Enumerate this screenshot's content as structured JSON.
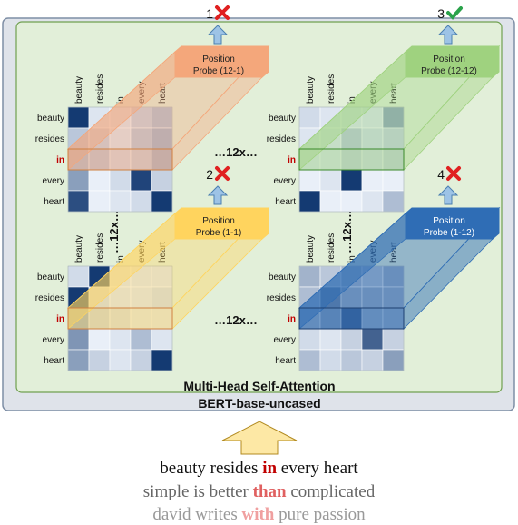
{
  "model_label": "BERT-base-uncased",
  "mhsa_label": "Multi-Head Self-Attention",
  "repeat_label": "…12x…",
  "tokens": [
    "beauty",
    "resides",
    "in",
    "every",
    "heart"
  ],
  "highlight_token_index": 2,
  "probes": [
    {
      "id": "tl",
      "number": "1",
      "result": "fail",
      "label_line1": "Position",
      "label_line2": "Probe (12-1)",
      "color": "#f4a77b"
    },
    {
      "id": "tr",
      "number": "3",
      "result": "pass",
      "label_line1": "Position",
      "label_line2": "Probe (12-12)",
      "color": "#9fd27f"
    },
    {
      "id": "bl",
      "number": "2",
      "result": "fail",
      "label_line1": "Position",
      "label_line2": "Probe (1-1)",
      "color": "#ffd45e"
    },
    {
      "id": "br",
      "number": "4",
      "result": "fail",
      "label_line1": "Position",
      "label_line2": "Probe (1-12)",
      "color": "#2f6db5"
    }
  ],
  "heatmaps": {
    "tl": [
      [
        0.95,
        0.1,
        0.1,
        0.2,
        0.3
      ],
      [
        0.25,
        0.2,
        0.1,
        0.25,
        0.35
      ],
      [
        0.3,
        0.25,
        0.15,
        0.2,
        0.35
      ],
      [
        0.45,
        0.05,
        0.15,
        0.9,
        0.2
      ],
      [
        0.85,
        0.05,
        0.1,
        0.15,
        0.95
      ]
    ],
    "tr": [
      [
        0.15,
        0.1,
        0.1,
        0.1,
        0.45
      ],
      [
        0.1,
        0.1,
        0.25,
        0.15,
        0.2
      ],
      [
        0.1,
        0.1,
        0.2,
        0.15,
        0.2
      ],
      [
        0.05,
        0.1,
        0.95,
        0.05,
        0.05
      ],
      [
        0.95,
        0.05,
        0.05,
        0.1,
        0.3
      ]
    ],
    "bl": [
      [
        0.15,
        0.95,
        0.1,
        0.1,
        0.1
      ],
      [
        0.95,
        0.15,
        0.1,
        0.1,
        0.15
      ],
      [
        0.4,
        0.2,
        0.15,
        0.1,
        0.1
      ],
      [
        0.5,
        0.05,
        0.1,
        0.3,
        0.1
      ],
      [
        0.45,
        0.2,
        0.1,
        0.2,
        0.95
      ]
    ],
    "br": [
      [
        0.35,
        0.25,
        0.35,
        0.3,
        0.4
      ],
      [
        0.3,
        0.6,
        0.4,
        0.4,
        0.4
      ],
      [
        0.35,
        0.45,
        0.8,
        0.35,
        0.35
      ],
      [
        0.15,
        0.1,
        0.2,
        0.75,
        0.2
      ],
      [
        0.3,
        0.15,
        0.25,
        0.2,
        0.45
      ]
    ]
  },
  "sentences": [
    {
      "before": "beauty resides ",
      "highlight": "in",
      "after": " every heart",
      "text_color": "#111111",
      "highlight_color": "#c00000"
    },
    {
      "before": "simple is better ",
      "highlight": "than",
      "after": " complicated",
      "text_color": "#666666",
      "highlight_color": "#e06060"
    },
    {
      "before": "david writes ",
      "highlight": "with",
      "after": " pure passion",
      "text_color": "#999999",
      "highlight_color": "#f0a0a0"
    }
  ],
  "colors": {
    "outer_box": "#dfe3ea",
    "inner_box": "#e2efd9",
    "arrow": "#9dc3e6",
    "input_arrow": "#fde8a5",
    "cross": "#e02020",
    "check": "#2aa24a"
  }
}
